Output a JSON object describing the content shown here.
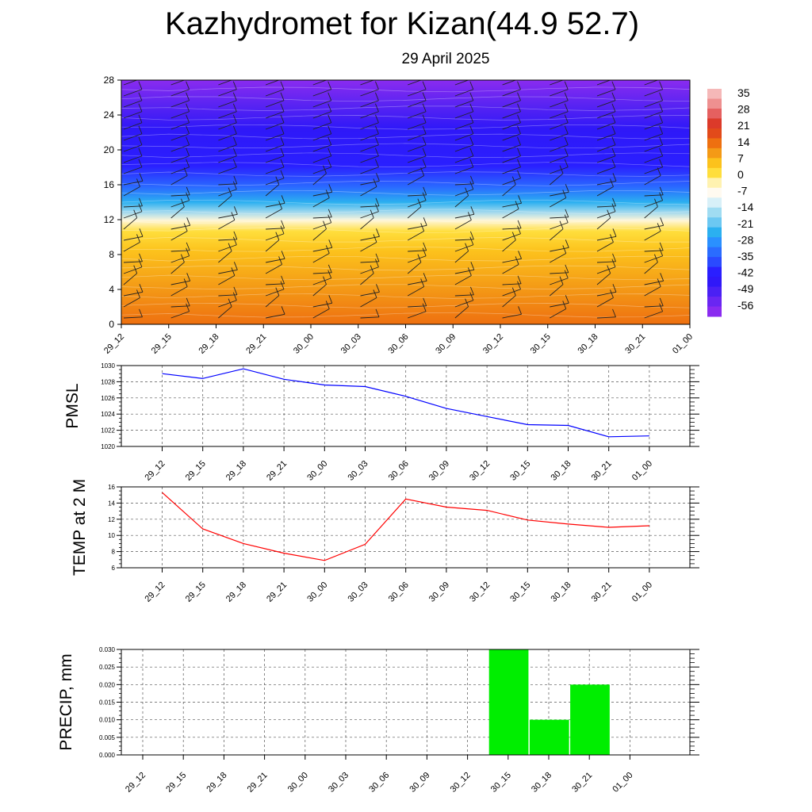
{
  "header": {
    "title": "Kazhydromet for Kizan(44.9 52.7)",
    "subtitle": "29 April 2025"
  },
  "chart_data": [
    {
      "type": "heatmap",
      "y_ticks": [
        "0",
        "4",
        "8",
        "12",
        "16",
        "20",
        "24",
        "28"
      ],
      "ylim": [
        0,
        28
      ],
      "x_ticks": [
        "29_12",
        "29_15",
        "29_18",
        "29_21",
        "30_00",
        "30_03",
        "30_06",
        "30_09",
        "30_12",
        "30_15",
        "30_18",
        "30_21",
        "01_00"
      ],
      "colorbar_labels": [
        "35",
        "28",
        "21",
        "14",
        "7",
        "0",
        "-7",
        "-14",
        "-21",
        "-28",
        "-35",
        "-42",
        "-49",
        "-56"
      ],
      "colors": {
        "warm": "#f07c12",
        "yellow": "#ffd21c",
        "cold_blue": "#2a1fff",
        "violet": "#8a2bf0"
      }
    },
    {
      "type": "line",
      "ylabel": "PMSL",
      "x": [
        "29_12",
        "29_15",
        "29_18",
        "29_21",
        "30_00",
        "30_03",
        "30_06",
        "30_09",
        "30_12",
        "30_15",
        "30_18",
        "30_21",
        "01_00"
      ],
      "values": [
        1029.0,
        1028.4,
        1029.6,
        1028.3,
        1027.6,
        1027.4,
        1026.2,
        1024.7,
        1023.7,
        1022.7,
        1022.6,
        1021.2,
        1021.3
      ],
      "ylim": [
        1020,
        1030
      ],
      "y_ticks": [
        "1020",
        "1022",
        "1024",
        "1026",
        "1028",
        "1030"
      ],
      "color": "#0000ff",
      "grid": true
    },
    {
      "type": "line",
      "ylabel": "TEMP at 2 M",
      "x": [
        "29_12",
        "29_15",
        "29_18",
        "29_21",
        "30_00",
        "30_03",
        "30_06",
        "30_09",
        "30_12",
        "30_15",
        "30_18",
        "30_21",
        "01_00"
      ],
      "values": [
        15.3,
        10.8,
        9.0,
        7.8,
        6.9,
        8.9,
        14.5,
        13.5,
        13.1,
        11.9,
        11.4,
        11.0,
        11.2
      ],
      "ylim": [
        6,
        16
      ],
      "y_ticks": [
        "6",
        "8",
        "10",
        "12",
        "14",
        "16"
      ],
      "color": "#ff0000",
      "grid": true
    },
    {
      "type": "bar",
      "ylabel": "PRECIP, mm",
      "categories": [
        "29_12",
        "29_15",
        "29_18",
        "29_21",
        "30_00",
        "30_03",
        "30_06",
        "30_09",
        "30_12",
        "30_15",
        "30_18",
        "30_21",
        "01_00"
      ],
      "values": [
        0,
        0,
        0,
        0,
        0,
        0,
        0,
        0,
        0,
        0.03,
        0.01,
        0.02,
        0
      ],
      "ylim": [
        0,
        0.03
      ],
      "y_ticks": [
        "0.000",
        "0.005",
        "0.010",
        "0.015",
        "0.020",
        "0.025",
        "0.030"
      ],
      "color": "#00ee00",
      "grid": true
    }
  ]
}
